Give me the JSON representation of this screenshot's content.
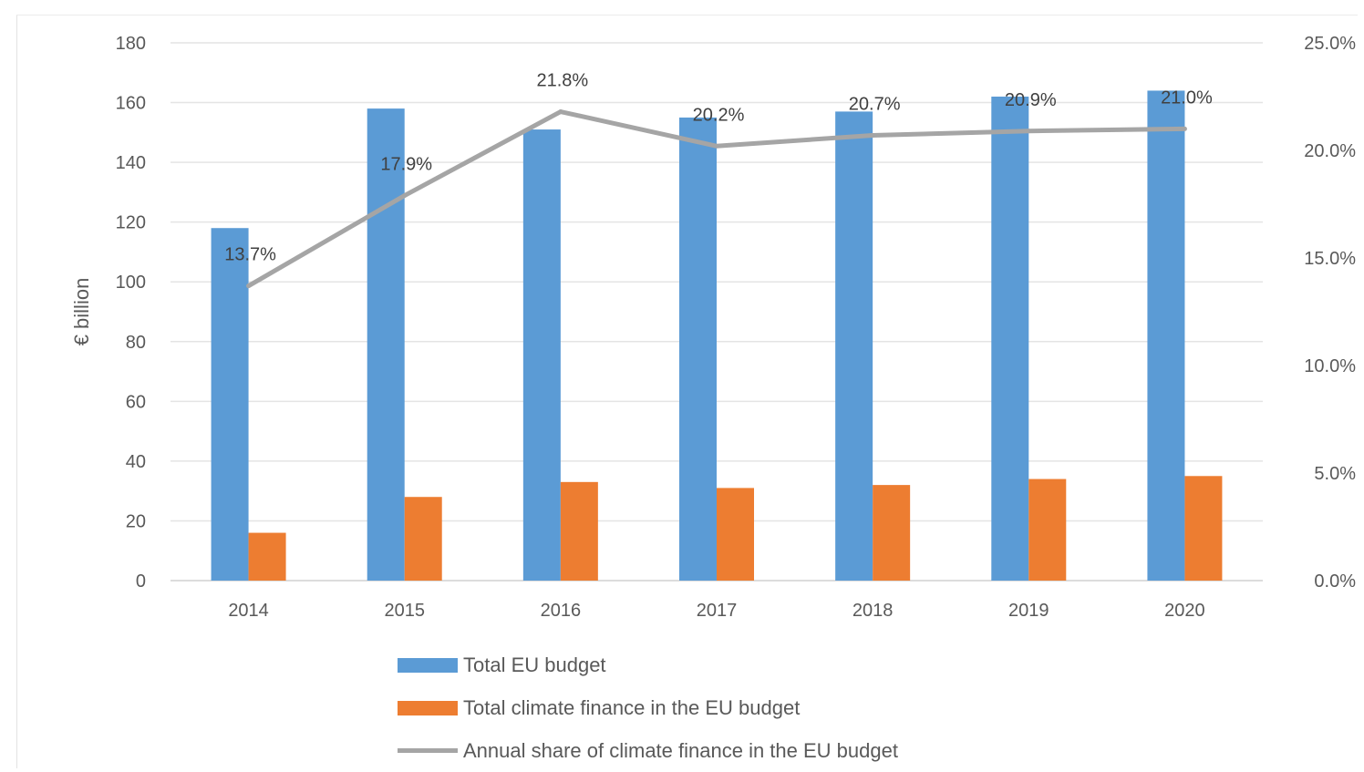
{
  "chart_data": {
    "type": "bar",
    "categories": [
      "2014",
      "2015",
      "2016",
      "2017",
      "2018",
      "2019",
      "2020"
    ],
    "ylabel": "€ billion",
    "ylim": [
      0,
      180
    ],
    "yticks": [
      "0",
      "20",
      "40",
      "60",
      "80",
      "100",
      "120",
      "140",
      "160",
      "180"
    ],
    "y2lim": [
      0,
      25
    ],
    "y2ticks": [
      "0.0%",
      "5.0%",
      "10.0%",
      "15.0%",
      "20.0%",
      "25.0%"
    ],
    "grid": true,
    "legend_position": "bottom",
    "series": [
      {
        "name": "Total EU budget",
        "type": "bar",
        "axis": "left",
        "color": "#5b9bd5",
        "values": [
          118,
          158,
          151,
          155,
          157,
          162,
          164
        ]
      },
      {
        "name": "Total climate finance in the EU budget",
        "type": "bar",
        "axis": "left",
        "color": "#ed7d31",
        "values": [
          16,
          28,
          33,
          31,
          32,
          34,
          35
        ]
      },
      {
        "name": "Annual share of climate finance in the EU budget",
        "type": "line",
        "axis": "right",
        "color": "#a5a5a5",
        "values": [
          13.7,
          17.9,
          21.8,
          20.2,
          20.7,
          20.9,
          21.0
        ],
        "labels": [
          "13.7%",
          "17.9%",
          "21.8%",
          "20.2%",
          "20.7%",
          "20.9%",
          "21.0%"
        ]
      }
    ]
  }
}
